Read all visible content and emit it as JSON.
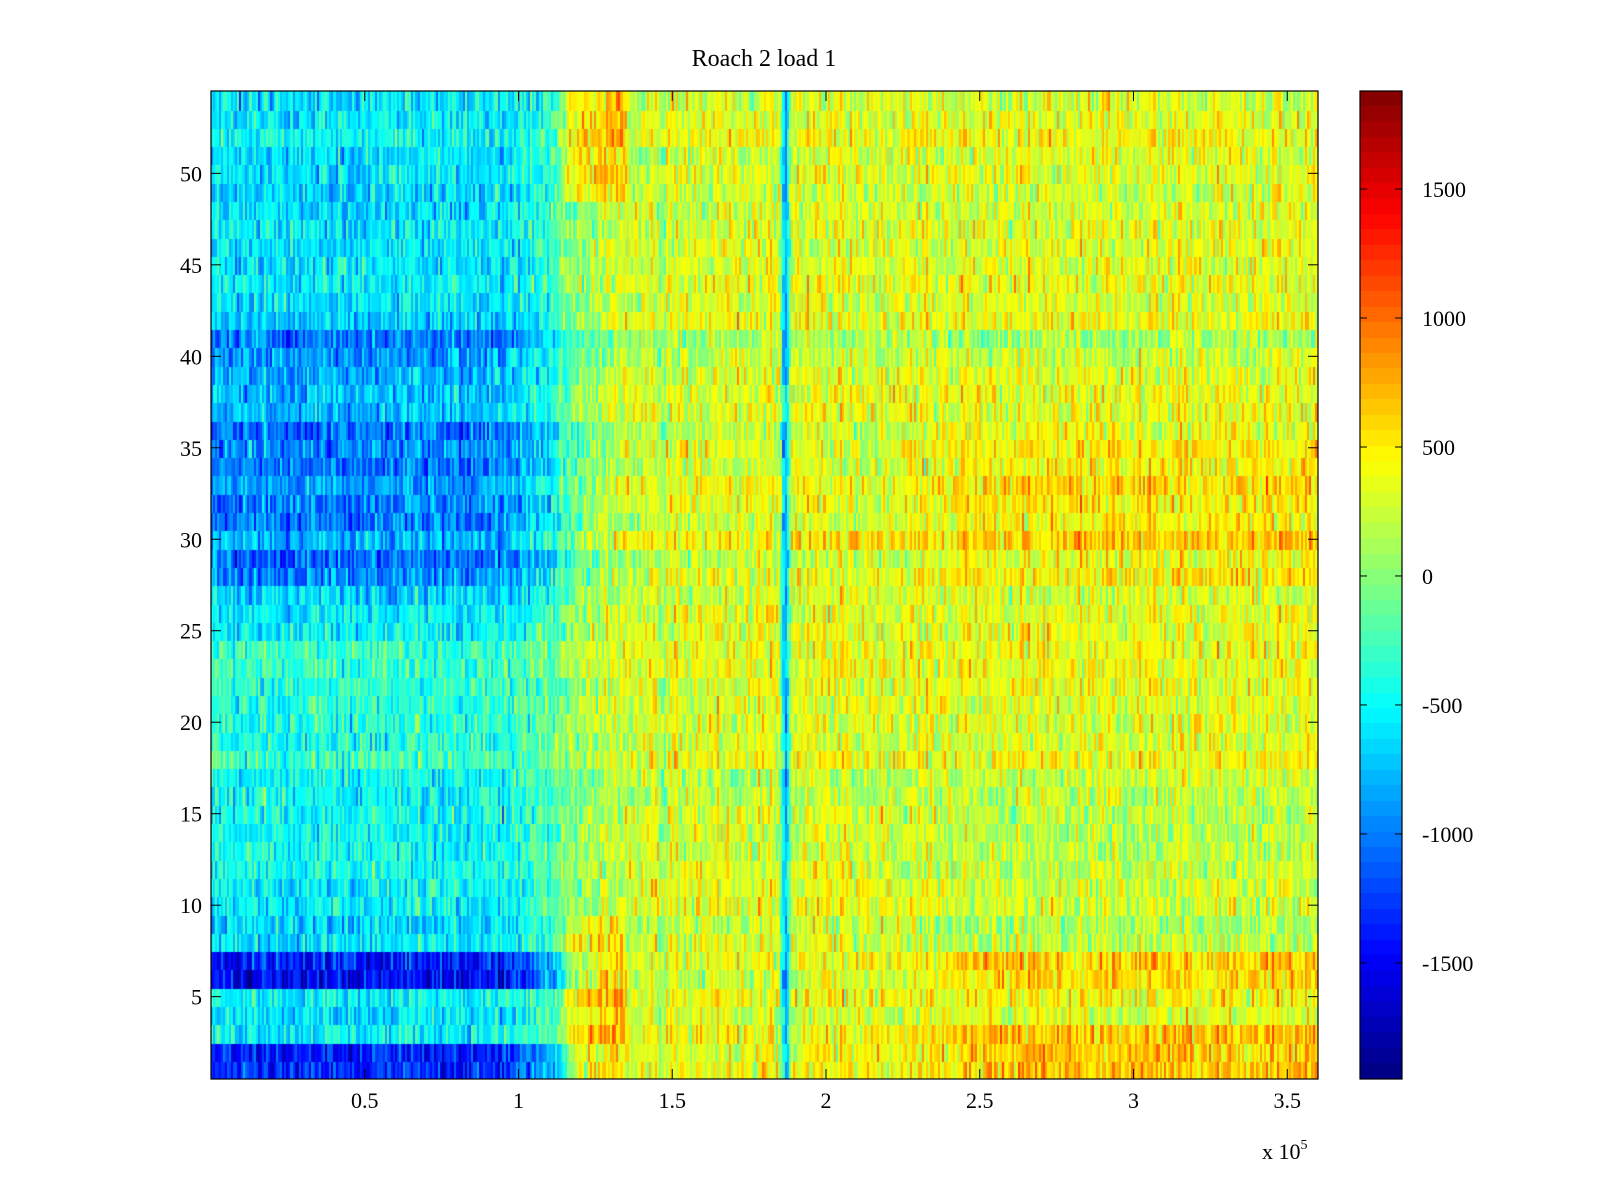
{
  "chart_data": {
    "type": "heatmap",
    "title": "Roach 2 load 1",
    "xlabel": "",
    "ylabel": "",
    "x_exponent_label": "x 10",
    "x_exponent_power": "5",
    "x_multiplier": 100000,
    "xlim": [
      0,
      3.6
    ],
    "ylim": [
      0.5,
      54.5
    ],
    "rows": 54,
    "columns": 540,
    "x_ticks": [
      0.5,
      1,
      1.5,
      2,
      2.5,
      3,
      3.5
    ],
    "x_tick_labels": [
      "0.5",
      "1",
      "1.5",
      "2",
      "2.5",
      "3",
      "3.5"
    ],
    "y_ticks": [
      5,
      10,
      15,
      20,
      25,
      30,
      35,
      40,
      45,
      50
    ],
    "y_tick_labels": [
      "5",
      "10",
      "15",
      "20",
      "25",
      "30",
      "35",
      "40",
      "45",
      "50"
    ],
    "colormap": "jet",
    "clim": [
      -1950,
      1880
    ],
    "colorbar_ticks": [
      1500,
      1000,
      500,
      0,
      -500,
      -1000,
      -1500
    ],
    "colorbar_tick_labels": [
      "1500",
      "1000",
      "500",
      "0",
      "-500",
      "-1000",
      "-1500"
    ],
    "description_of_pattern": {
      "left_region_x_0_to_1.1": "mostly cyan/blue values around -500 to -1200; deepest blue (-1500) in rows 1-2 and 6-7",
      "right_region_x_1.9_to_3.6": "mostly yellow/orange values around 200 to 900",
      "vertical_dip_at_x_1.87": "narrow blue stripe near -900"
    }
  }
}
